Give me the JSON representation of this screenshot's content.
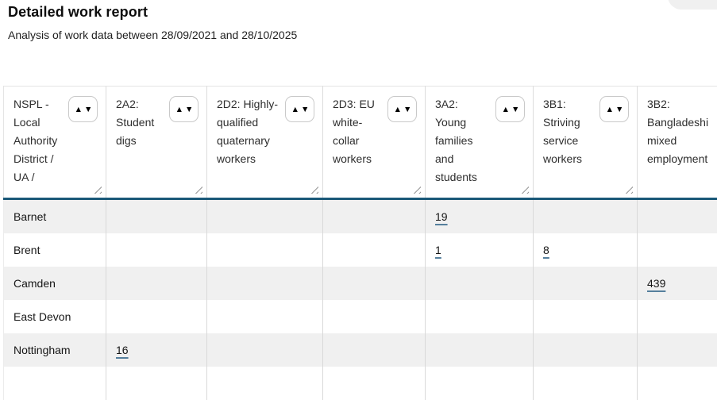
{
  "page": {
    "title": "Detailed work report",
    "subtitle": "Analysis of work data between 28/09/2021 and 28/10/2025"
  },
  "icons": {
    "sort": "▲▼"
  },
  "colors": {
    "header_divider": "#1A5878",
    "row_alt_background": "#F0F0F0",
    "link_underline": "#557F9D"
  },
  "table": {
    "columns": [
      "NSPL - Local Authority District / UA /",
      "2A2: Student digs",
      "2D2: Highly-qualified quaternary workers",
      "2D3: EU white-collar workers",
      "3A2: Young families and students",
      "3B1: Striving service workers",
      "3B2: Bangladeshi mixed employment"
    ],
    "rows": [
      {
        "name": "Barnet",
        "values": [
          "",
          "",
          "",
          "19",
          "",
          ""
        ]
      },
      {
        "name": "Brent",
        "values": [
          "",
          "",
          "",
          "1",
          "8",
          ""
        ]
      },
      {
        "name": "Camden",
        "values": [
          "",
          "",
          "",
          "",
          "",
          "439"
        ]
      },
      {
        "name": "East Devon",
        "values": [
          "",
          "",
          "",
          "",
          "",
          ""
        ]
      },
      {
        "name": "Nottingham",
        "values": [
          "16",
          "",
          "",
          "",
          "",
          ""
        ]
      }
    ]
  }
}
